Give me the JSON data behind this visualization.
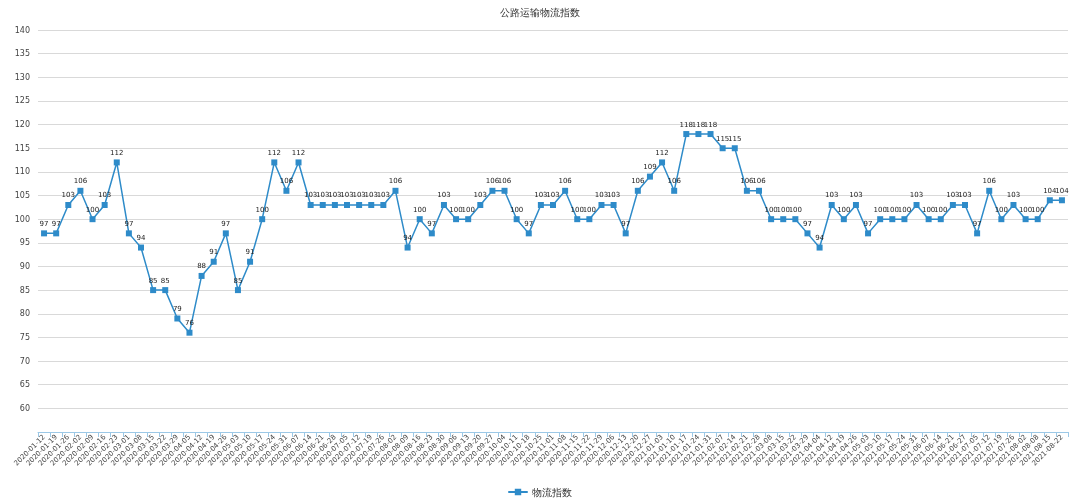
{
  "chart_data": {
    "type": "line",
    "title": "公路运输物流指数",
    "categories": [
      "2020-01-12",
      "2020-01-19",
      "2020-01-26",
      "2020-02-02",
      "2020-02-09",
      "2020-02-16",
      "2020-02-23",
      "2020-03-01",
      "2020-03-08",
      "2020-03-15",
      "2020-03-22",
      "2020-03-29",
      "2020-04-05",
      "2020-04-12",
      "2020-04-19",
      "2020-04-26",
      "2020-05-03",
      "2020-05-10",
      "2020-05-17",
      "2020-05-24",
      "2020-05-31",
      "2020-06-07",
      "2020-06-14",
      "2020-06-21",
      "2020-06-28",
      "2020-07-05",
      "2020-07-12",
      "2020-07-19",
      "2020-07-26",
      "2020-08-02",
      "2020-08-09",
      "2020-08-16",
      "2020-08-23",
      "2020-08-30",
      "2020-09-06",
      "2020-09-13",
      "2020-09-20",
      "2020-09-27",
      "2020-10-04",
      "2020-10-11",
      "2020-10-18",
      "2020-10-25",
      "2020-11-01",
      "2020-11-08",
      "2020-11-15",
      "2020-11-22",
      "2020-11-29",
      "2020-12-06",
      "2020-12-13",
      "2020-12-20",
      "2020-12-27",
      "2021-01-03",
      "2021-01-10",
      "2021-01-17",
      "2021-01-24",
      "2021-01-31",
      "2021-02-07",
      "2021-02-14",
      "2021-02-21",
      "2021-02-28",
      "2021-03-08",
      "2021-03-15",
      "2021-03-22",
      "2021-03-29",
      "2021-04-04",
      "2021-04-12",
      "2021-04-19",
      "2021-04-26",
      "2021-05-03",
      "2021-05-10",
      "2021-05-17",
      "2021-05-24",
      "2021-05-31",
      "2021-06-07",
      "2021-06-14",
      "2021-06-21",
      "2021-06-27",
      "2021-07-05",
      "2021-07-12",
      "2021-07-19",
      "2021-07-26",
      "2021-08-02",
      "2021-08-08",
      "2021-08-15",
      "2021-08-22"
    ],
    "series": [
      {
        "name": "物流指数",
        "color": "#2e8bc9",
        "values": [
          97,
          97,
          103,
          106,
          100,
          103,
          112,
          97,
          94,
          85,
          85,
          79,
          76,
          88,
          91,
          97,
          85,
          91,
          100,
          112,
          106,
          112,
          103,
          103,
          103,
          103,
          103,
          103,
          103,
          106,
          94,
          100,
          97,
          103,
          100,
          100,
          103,
          106,
          106,
          100,
          97,
          103,
          103,
          106,
          100,
          100,
          103,
          103,
          97,
          106,
          109,
          112,
          106,
          118,
          118,
          118,
          115,
          115,
          106,
          106,
          100,
          100,
          100,
          97,
          94,
          103,
          100,
          103,
          97,
          100,
          100,
          100,
          103,
          100,
          100,
          103,
          103,
          97,
          106,
          100,
          103,
          100,
          100,
          104,
          104
        ]
      }
    ],
    "ylim": [
      55,
      140
    ],
    "yticks": [
      60,
      65,
      70,
      75,
      80,
      85,
      90,
      95,
      100,
      105,
      110,
      115,
      120,
      125,
      130,
      135,
      140
    ],
    "grid": "y",
    "legend": "bottom",
    "marker": "square",
    "line_style": "solid",
    "data_labels": true
  }
}
